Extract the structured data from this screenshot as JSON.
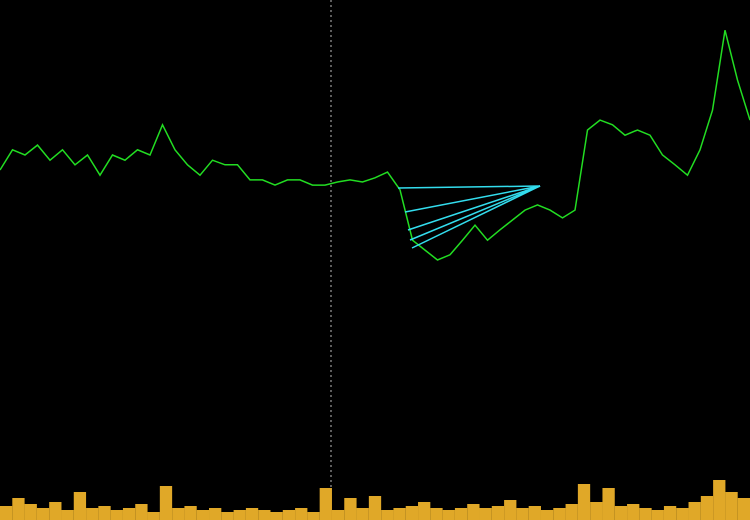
{
  "chart_data": [
    {
      "type": "line",
      "color": "#22dd22",
      "ylim": [
        0,
        100
      ],
      "values": [
        67.3,
        71.2,
        70.2,
        72.1,
        69.2,
        71.2,
        68.3,
        70.2,
        66.3,
        70.2,
        69.2,
        71.2,
        70.2,
        76,
        71.2,
        68.3,
        66.3,
        69.2,
        68.3,
        68.3,
        65.4,
        65.4,
        64.4,
        65.4,
        65.4,
        64.4,
        64.4,
        65,
        65.4,
        65,
        65.8,
        66.9,
        63.5,
        53.8,
        51.9,
        50,
        51,
        53.8,
        56.7,
        53.8,
        55.8,
        57.7,
        59.6,
        60.6,
        59.6,
        58.1,
        59.6,
        75,
        76.9,
        76,
        74,
        75,
        74,
        70.2,
        68.3,
        66.3,
        71.2,
        78.8,
        94.2,
        84.6,
        76.9
      ]
    },
    {
      "type": "bar",
      "color": "#e0a828",
      "ylim": [
        0,
        100
      ],
      "values": [
        35,
        55,
        40,
        30,
        45,
        25,
        70,
        30,
        35,
        25,
        30,
        40,
        20,
        85,
        30,
        35,
        25,
        30,
        20,
        25,
        30,
        25,
        20,
        25,
        30,
        20,
        80,
        25,
        55,
        30,
        60,
        25,
        30,
        35,
        45,
        30,
        25,
        30,
        40,
        30,
        35,
        50,
        30,
        35,
        25,
        30,
        40,
        90,
        45,
        80,
        35,
        40,
        30,
        25,
        35,
        30,
        45,
        60,
        100,
        70,
        55
      ]
    }
  ]
}
